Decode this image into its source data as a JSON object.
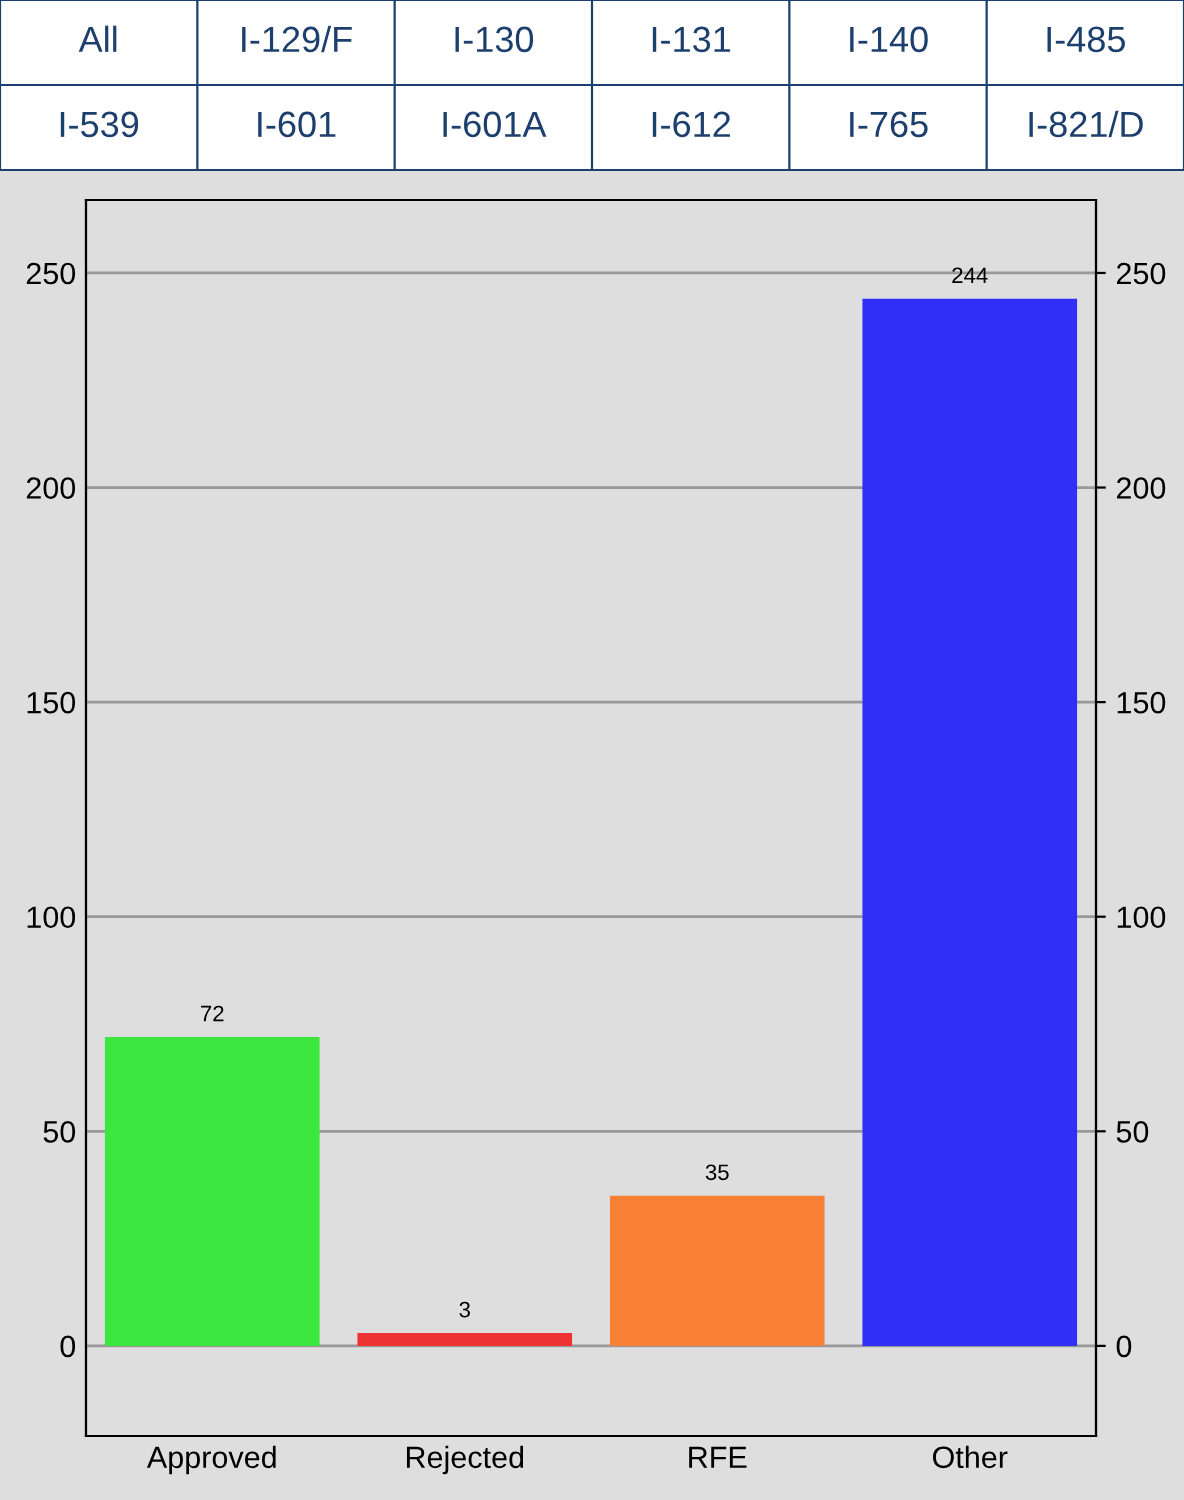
{
  "chart_data": [
    {
      "type": "other",
      "annotations": [
        "All",
        "I-129/F",
        "I-130",
        "I-131",
        "I-140",
        "I-485",
        "I-539",
        "I-601",
        "I-601A",
        "I-612",
        "I-765",
        "I-821/D"
      ]
    },
    {
      "type": "bar",
      "categories": [
        "Approved",
        "Rejected",
        "RFE",
        "Other"
      ],
      "values": [
        72,
        3,
        35,
        244
      ],
      "colors": [
        "#3ce63f",
        "#ee3333",
        "#f88036",
        "#2f2ff8"
      ],
      "ylim": [
        -21,
        267
      ],
      "yticks": [
        0,
        50,
        100,
        150,
        200,
        250
      ],
      "y2lim": [
        -21,
        267
      ],
      "y2ticks": [
        0,
        50,
        100,
        150,
        200,
        250
      ],
      "grid": "y",
      "data_labels": true
    }
  ]
}
